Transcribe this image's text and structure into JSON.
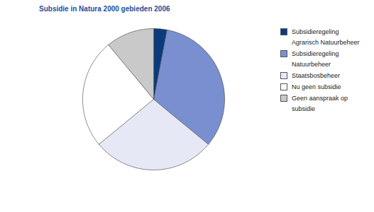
{
  "chart_data": {
    "type": "pie",
    "title": "Subsidie in Natura 2000 gebieden 2006",
    "categories": [
      "Subsidieregeling Agrarisch Natuurbeheer",
      "Subsidieregeling Natuurbeheer",
      "Staatsbosbeheer",
      "Nu geen subsidie",
      "Geen aanspraak op subsidie"
    ],
    "values": [
      3,
      33,
      28,
      25,
      11
    ],
    "colors": [
      "#0b3b7c",
      "#7a8fcf",
      "#e6e8f5",
      "#ffffff",
      "#c9c9c9"
    ],
    "legend": "right"
  }
}
